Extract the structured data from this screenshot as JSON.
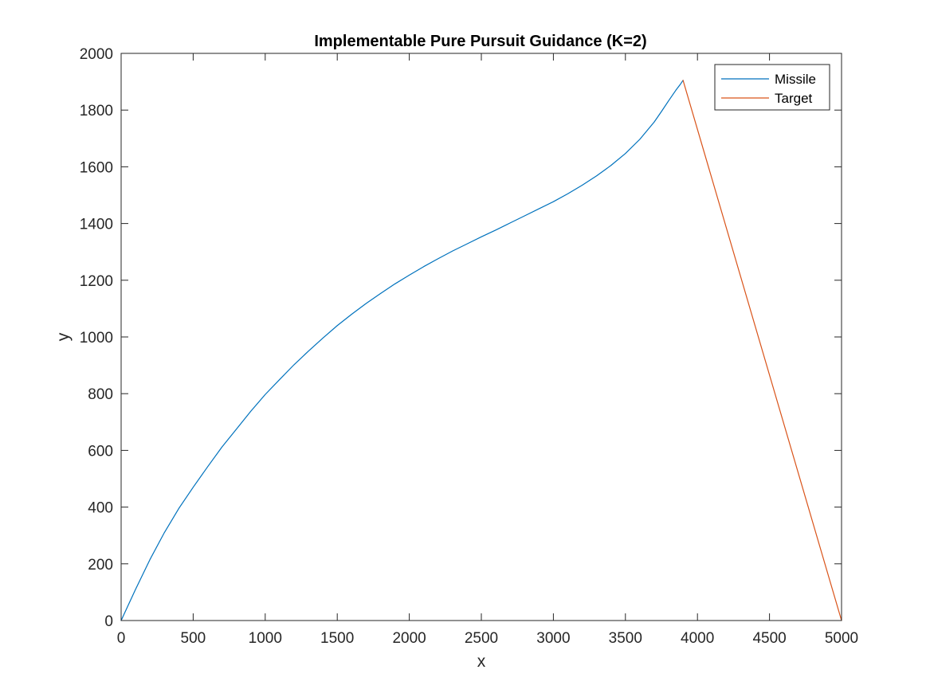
{
  "chart_data": {
    "type": "line",
    "title": "Implementable Pure Pursuit Guidance (K=2)",
    "xlabel": "x",
    "ylabel": "y",
    "xlim": [
      0,
      5000
    ],
    "ylim": [
      0,
      2000
    ],
    "x_ticks": [
      0,
      500,
      1000,
      1500,
      2000,
      2500,
      3000,
      3500,
      4000,
      4500,
      5000
    ],
    "y_ticks": [
      0,
      200,
      400,
      600,
      800,
      1000,
      1200,
      1400,
      1600,
      1800,
      2000
    ],
    "grid": false,
    "box": true,
    "legend_position": "top-right",
    "series": [
      {
        "name": "Missile",
        "color": "#0072BD",
        "x": [
          0,
          100,
          200,
          300,
          400,
          500,
          600,
          700,
          800,
          900,
          1000,
          1100,
          1200,
          1300,
          1400,
          1500,
          1600,
          1700,
          1800,
          1900,
          2000,
          2100,
          2200,
          2300,
          2400,
          2500,
          2600,
          2700,
          2800,
          2900,
          3000,
          3100,
          3200,
          3300,
          3400,
          3500,
          3600,
          3700,
          3750,
          3800,
          3850,
          3880,
          3900
        ],
        "y": [
          0,
          110,
          215,
          310,
          395,
          470,
          542,
          612,
          675,
          738,
          797,
          850,
          902,
          950,
          996,
          1040,
          1080,
          1118,
          1153,
          1187,
          1218,
          1248,
          1276,
          1303,
          1328,
          1353,
          1377,
          1402,
          1427,
          1452,
          1477,
          1505,
          1535,
          1568,
          1605,
          1647,
          1697,
          1758,
          1795,
          1833,
          1870,
          1890,
          1905
        ]
      },
      {
        "name": "Target",
        "color": "#D95319",
        "x": [
          5000,
          3900
        ],
        "y": [
          0,
          1905
        ]
      }
    ]
  }
}
